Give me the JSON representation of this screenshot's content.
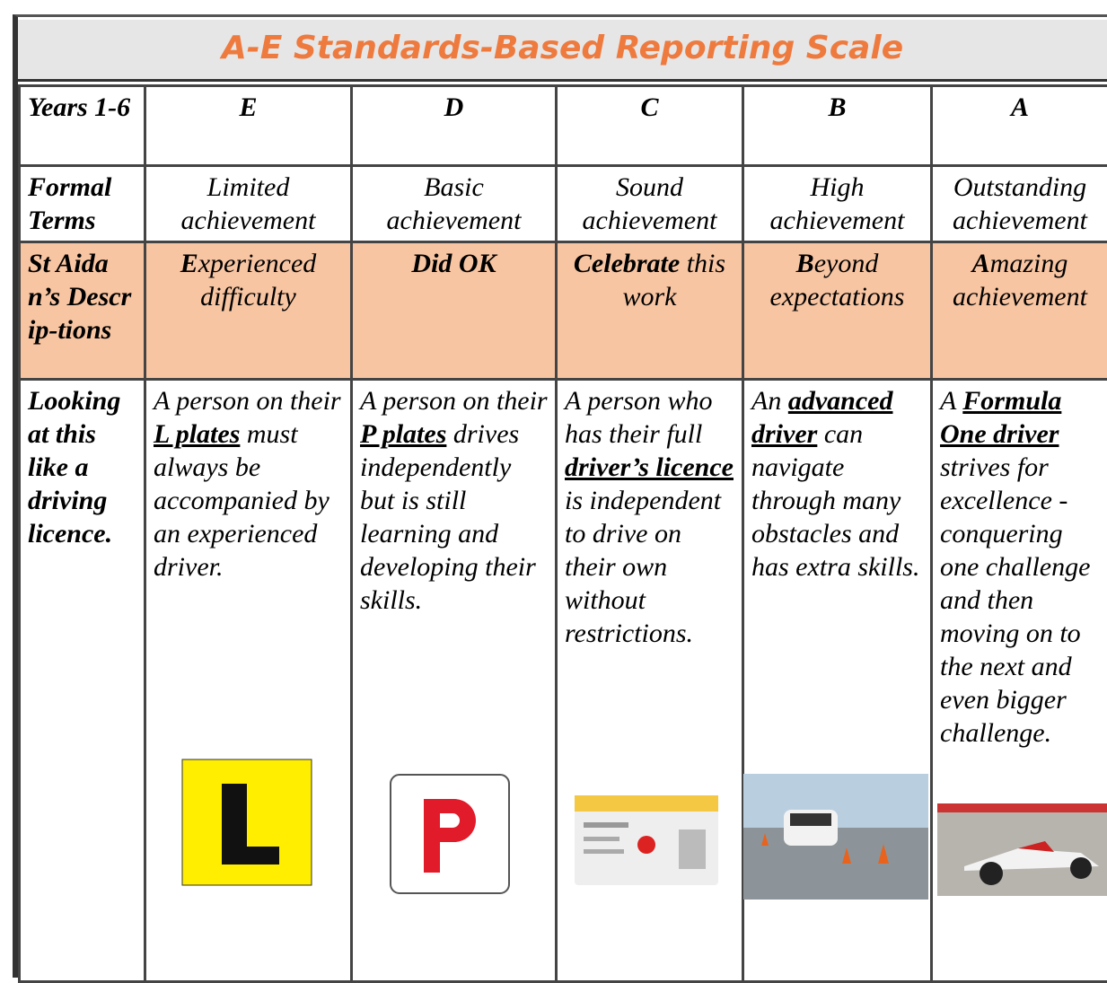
{
  "header": {
    "title": "A-E Standards-Based Reporting Scale"
  },
  "table": {
    "columns": [
      "Years 1-6",
      "E",
      "D",
      "C",
      "B",
      "A"
    ],
    "formal_terms": {
      "label": "Formal Terms",
      "cells": [
        "Limited achievement",
        "Basic achievement",
        "Sound achievement",
        "High achievement",
        "Outstanding achievement"
      ]
    },
    "descriptions": {
      "label": "St Aidan’s Descrip-tions",
      "cells": [
        {
          "bold": "E",
          "text": "xperienced difficulty"
        },
        {
          "bold": "Did OK"
        },
        {
          "bold": "Celebrate",
          "text": " this work"
        },
        {
          "bold": "B",
          "text": "eyond expectations"
        },
        {
          "bold": "A",
          "text": "mazing achievement"
        }
      ]
    },
    "driving": {
      "label": "Looking at this like a driving licence.",
      "cells": [
        {
          "before": "A person on their ",
          "highlight": "L plates",
          "after": " must always be accompanied by an experienced driver."
        },
        {
          "before": "A person on their ",
          "highlight": "P plates",
          "after": " drives independently but is still learning and developing their skills."
        },
        {
          "before": "A person who has their full ",
          "highlight": "driver’s licence",
          "after": " is independent to drive on their own without restrictions."
        },
        {
          "before": "An ",
          "highlight": "advanced driver",
          "after": " can navigate through many obstacles and has extra skills."
        },
        {
          "before": "A ",
          "highlight": "Formula One driver",
          "after": " strives for excellence - conquering one challenge and then moving on to the next and even bigger challenge."
        }
      ]
    }
  }
}
